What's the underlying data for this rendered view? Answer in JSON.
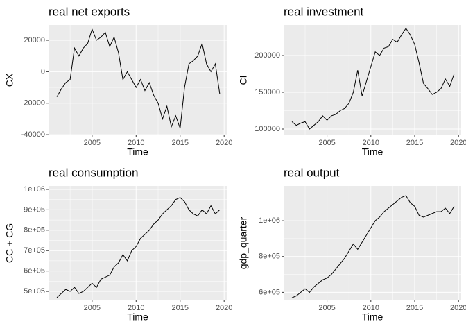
{
  "chart_data": [
    {
      "type": "line",
      "title": "real net exports",
      "x_label": "Time",
      "y_label": "CX",
      "grid": true,
      "xlim": [
        2000.05,
        2020.3
      ],
      "xticks": [
        2005,
        2010,
        2015,
        2020
      ],
      "ylim": [
        -40400,
        29700
      ],
      "yticks": [
        -40000,
        -20000,
        0,
        20000
      ],
      "x": [
        2001,
        2001.5,
        2002,
        2002.5,
        2003,
        2003.5,
        2004,
        2004.5,
        2005,
        2005.5,
        2006,
        2006.5,
        2007,
        2007.5,
        2008,
        2008.5,
        2009,
        2009.5,
        2010,
        2010.5,
        2011,
        2011.5,
        2012,
        2012.5,
        2013,
        2013.5,
        2014,
        2014.5,
        2015,
        2015.5,
        2016,
        2016.5,
        2017,
        2017.5,
        2018,
        2018.5,
        2019,
        2019.5
      ],
      "series": [
        {
          "name": "CX",
          "color": "#000000",
          "values": [
            -16000,
            -11000,
            -7000,
            -5000,
            15000,
            10000,
            15000,
            18000,
            27000,
            20000,
            22000,
            25000,
            16000,
            22000,
            12000,
            -5000,
            0,
            -5000,
            -10000,
            -5000,
            -12000,
            -7000,
            -15000,
            -20000,
            -30000,
            -22000,
            -35000,
            -28000,
            -36000,
            -10000,
            5000,
            7000,
            10000,
            18000,
            5000,
            0,
            5000,
            -14000
          ]
        }
      ]
    },
    {
      "type": "line",
      "title": "real investment",
      "x_label": "Time",
      "y_label": "CI",
      "grid": true,
      "xlim": [
        2000.05,
        2020.3
      ],
      "xticks": [
        2005,
        2010,
        2015,
        2020
      ],
      "ylim": [
        91500,
        241500
      ],
      "yticks": [
        100000,
        150000,
        200000
      ],
      "x": [
        2001,
        2001.5,
        2002,
        2002.5,
        2003,
        2003.5,
        2004,
        2004.5,
        2005,
        2005.5,
        2006,
        2006.5,
        2007,
        2007.5,
        2008,
        2008.5,
        2009,
        2009.5,
        2010,
        2010.5,
        2011,
        2011.5,
        2012,
        2012.5,
        2013,
        2013.5,
        2014,
        2014.5,
        2015,
        2015.5,
        2016,
        2016.5,
        2017,
        2017.5,
        2018,
        2018.5,
        2019,
        2019.5
      ],
      "series": [
        {
          "name": "CI",
          "color": "#000000",
          "values": [
            110000,
            105000,
            108000,
            110000,
            100000,
            105000,
            110000,
            118000,
            112000,
            118000,
            120000,
            125000,
            128000,
            135000,
            150000,
            180000,
            145000,
            165000,
            185000,
            205000,
            200000,
            210000,
            212000,
            222000,
            218000,
            228000,
            237000,
            228000,
            215000,
            190000,
            162000,
            155000,
            147000,
            150000,
            155000,
            168000,
            158000,
            175000
          ]
        }
      ]
    },
    {
      "type": "line",
      "title": "real consumption",
      "x_label": "Time",
      "y_label": "CC + CG",
      "grid": true,
      "xlim": [
        2000.05,
        2020.3
      ],
      "xticks": [
        2005,
        2010,
        2015,
        2020
      ],
      "ylim": [
        456000,
        1017000
      ],
      "yticks": [
        {
          "value": 500000,
          "label": "5e+05"
        },
        {
          "value": 600000,
          "label": "6e+05"
        },
        {
          "value": 700000,
          "label": "7e+05"
        },
        {
          "value": 800000,
          "label": "8e+05"
        },
        {
          "value": 900000,
          "label": "9e+05"
        },
        {
          "value": 1000000,
          "label": "1e+06"
        }
      ],
      "x": [
        2001,
        2001.5,
        2002,
        2002.5,
        2003,
        2003.5,
        2004,
        2004.5,
        2005,
        2005.5,
        2006,
        2006.5,
        2007,
        2007.5,
        2008,
        2008.5,
        2009,
        2009.5,
        2010,
        2010.5,
        2011,
        2011.5,
        2012,
        2012.5,
        2013,
        2013.5,
        2014,
        2014.5,
        2015,
        2015.5,
        2016,
        2016.5,
        2017,
        2017.5,
        2018,
        2018.5,
        2019,
        2019.5
      ],
      "series": [
        {
          "name": "CC + CG",
          "color": "#000000",
          "values": [
            470000,
            490000,
            510000,
            500000,
            520000,
            490000,
            500000,
            520000,
            540000,
            520000,
            560000,
            570000,
            580000,
            620000,
            640000,
            680000,
            650000,
            700000,
            720000,
            760000,
            780000,
            800000,
            830000,
            850000,
            880000,
            900000,
            920000,
            950000,
            960000,
            940000,
            900000,
            880000,
            870000,
            900000,
            880000,
            920000,
            880000,
            900000
          ]
        }
      ]
    },
    {
      "type": "line",
      "title": "real output",
      "x_label": "Time",
      "y_label": "gdp_quarter",
      "grid": true,
      "xlim": [
        2000.05,
        2020.3
      ],
      "xticks": [
        2005,
        2010,
        2015,
        2020
      ],
      "ylim": [
        555000,
        1194000
      ],
      "yticks": [
        {
          "value": 600000,
          "label": "6e+05"
        },
        {
          "value": 800000,
          "label": "8e+05"
        },
        {
          "value": 1000000,
          "label": "1e+06"
        }
      ],
      "x": [
        2001,
        2001.5,
        2002,
        2002.5,
        2003,
        2003.5,
        2004,
        2004.5,
        2005,
        2005.5,
        2006,
        2006.5,
        2007,
        2007.5,
        2008,
        2008.5,
        2009,
        2009.5,
        2010,
        2010.5,
        2011,
        2011.5,
        2012,
        2012.5,
        2013,
        2013.5,
        2014,
        2014.5,
        2015,
        2015.5,
        2016,
        2016.5,
        2017,
        2017.5,
        2018,
        2018.5,
        2019,
        2019.5
      ],
      "series": [
        {
          "name": "gdp_quarter",
          "color": "#000000",
          "values": [
            570000,
            580000,
            600000,
            620000,
            600000,
            630000,
            650000,
            670000,
            680000,
            700000,
            730000,
            760000,
            790000,
            830000,
            870000,
            840000,
            880000,
            920000,
            960000,
            1000000,
            1020000,
            1050000,
            1070000,
            1090000,
            1110000,
            1130000,
            1140000,
            1100000,
            1080000,
            1030000,
            1020000,
            1030000,
            1040000,
            1050000,
            1050000,
            1070000,
            1040000,
            1080000
          ]
        }
      ]
    }
  ]
}
